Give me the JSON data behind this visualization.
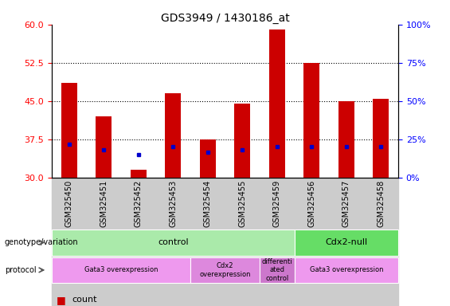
{
  "title": "GDS3949 / 1430186_at",
  "samples": [
    "GSM325450",
    "GSM325451",
    "GSM325452",
    "GSM325453",
    "GSM325454",
    "GSM325455",
    "GSM325459",
    "GSM325456",
    "GSM325457",
    "GSM325458"
  ],
  "counts": [
    48.5,
    42.0,
    31.5,
    46.5,
    37.5,
    44.5,
    59.0,
    52.5,
    45.0,
    45.5
  ],
  "percentile_ranks_left": [
    36.5,
    35.5,
    34.5,
    36.0,
    35.0,
    35.5,
    36.0,
    36.0,
    36.0,
    36.0
  ],
  "percentile_y_scale": [
    0,
    25,
    50,
    75,
    100
  ],
  "count_y_scale": [
    30,
    37.5,
    45,
    52.5,
    60
  ],
  "ylim_count": [
    30,
    60
  ],
  "ylim_pct": [
    0,
    100
  ],
  "bar_color": "#cc0000",
  "pct_color": "#0000cc",
  "bar_bottom": 30,
  "bar_width": 0.45,
  "genotype_groups": [
    {
      "label": "control",
      "start": 0,
      "end": 7,
      "color": "#aaeaaa"
    },
    {
      "label": "Cdx2-null",
      "start": 7,
      "end": 10,
      "color": "#66dd66"
    }
  ],
  "protocol_groups": [
    {
      "label": "Gata3 overexpression",
      "start": 0,
      "end": 4,
      "color": "#ee99ee"
    },
    {
      "label": "Cdx2\noverexpression",
      "start": 4,
      "end": 6,
      "color": "#dd88dd"
    },
    {
      "label": "differenti\nated\ncontrol",
      "start": 6,
      "end": 7,
      "color": "#cc77cc"
    },
    {
      "label": "Gata3 overexpression",
      "start": 7,
      "end": 10,
      "color": "#ee99ee"
    }
  ],
  "xtick_bg_color": "#cccccc",
  "title_fontsize": 10,
  "tick_label_fontsize": 7,
  "annot_fontsize": 8,
  "legend_fontsize": 8
}
